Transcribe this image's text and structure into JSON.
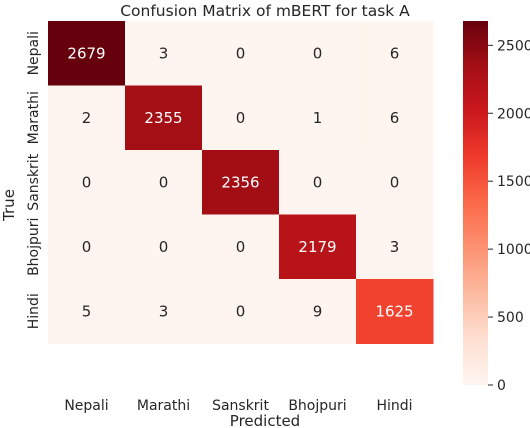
{
  "chart_data": {
    "type": "heatmap",
    "title": "Confusion Matrix of mBERT for task A",
    "xlabel": "Predicted",
    "ylabel": "True",
    "x_categories": [
      "Nepali",
      "Marathi",
      "Sanskrit",
      "Bhojpuri",
      "Hindi"
    ],
    "y_categories": [
      "Nepali",
      "Marathi",
      "Sanskrit",
      "Bhojpuri",
      "Hindi"
    ],
    "matrix": [
      [
        2679,
        3,
        0,
        0,
        6
      ],
      [
        2,
        2355,
        0,
        1,
        6
      ],
      [
        0,
        0,
        2356,
        0,
        0
      ],
      [
        0,
        0,
        0,
        2179,
        3
      ],
      [
        5,
        3,
        0,
        9,
        1625
      ]
    ],
    "colorbar": {
      "range": [
        0,
        2679
      ],
      "ticks": [
        0,
        500,
        1000,
        1500,
        2000,
        2500
      ],
      "colormap": "Reds",
      "low_color": "#fff5f0",
      "high_color": "#67000d"
    }
  }
}
